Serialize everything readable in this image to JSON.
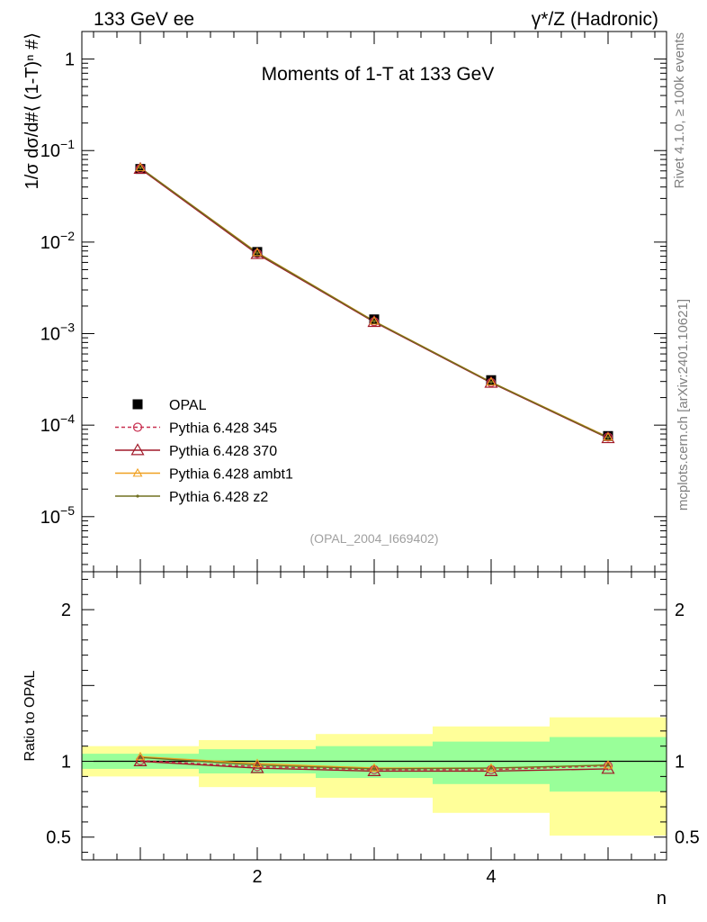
{
  "header": {
    "left": "133 GeV ee",
    "right": "γ*/Z (Hadronic)"
  },
  "side": {
    "rivet": "Rivet 4.1.0, ≥ 100k events",
    "mcplots": "mcplots.cern.ch [arXiv:2401.10621]"
  },
  "chart_data": [
    {
      "type": "scatter",
      "panel": "main",
      "title": "Moments of 1-T at 133 GeV",
      "ylabel": "1/σ dσ/d#⟨ (1-T)ⁿ #⟩",
      "watermark": "(OPAL_2004_I669402)",
      "yscale": "log",
      "ylim": [
        2.5e-06,
        2
      ],
      "xlim": [
        0.5,
        5.5
      ],
      "y_ticks": [
        {
          "value": 1,
          "base": "1",
          "exp": ""
        },
        {
          "value": 0.1,
          "base": "10",
          "exp": "−1"
        },
        {
          "value": 0.01,
          "base": "10",
          "exp": "−2"
        },
        {
          "value": 0.001,
          "base": "10",
          "exp": "−3"
        },
        {
          "value": 0.0001,
          "base": "10",
          "exp": "−4"
        },
        {
          "value": 1e-05,
          "base": "10",
          "exp": "−5"
        }
      ],
      "x": [
        1,
        2,
        3,
        4,
        5
      ],
      "series": [
        {
          "name": "OPAL",
          "color": "#000000",
          "marker": "square",
          "values": [
            0.063,
            0.0078,
            0.00143,
            0.00031,
            7.6e-05
          ]
        },
        {
          "name": "Pythia 6.428 345",
          "color": "#c83050",
          "marker": "circle",
          "dashed": true,
          "values": [
            0.0635,
            0.0075,
            0.00135,
            0.000292,
            7.4e-05
          ]
        },
        {
          "name": "Pythia 6.428 370",
          "color": "#a01828",
          "marker": "triangle",
          "values": [
            0.0632,
            0.0074,
            0.00134,
            0.00029,
            7.2e-05
          ]
        },
        {
          "name": "Pythia 6.428 ambt1",
          "color": "#f0a020",
          "marker": "triangle-small",
          "values": [
            0.065,
            0.0077,
            0.00137,
            0.000296,
            7.4e-05
          ]
        },
        {
          "name": "Pythia 6.428 z2",
          "color": "#707020",
          "marker": "dot",
          "values": [
            0.0648,
            0.0076,
            0.00136,
            0.000294,
            7.3e-05
          ]
        }
      ]
    },
    {
      "type": "line",
      "panel": "ratio",
      "ylabel": "Ratio to OPAL",
      "xlabel": "n",
      "ylim": [
        0.35,
        2.25
      ],
      "xlim": [
        0.5,
        5.5
      ],
      "x_ticks": [
        2,
        4
      ],
      "y_ticks": [
        0.5,
        1,
        2
      ],
      "bands": [
        {
          "xmin": 0.5,
          "xmax": 1.5,
          "stat": [
            0.95,
            1.05
          ],
          "total": [
            0.9,
            1.1
          ]
        },
        {
          "xmin": 1.5,
          "xmax": 2.5,
          "stat": [
            0.92,
            1.08
          ],
          "total": [
            0.83,
            1.14
          ]
        },
        {
          "xmin": 2.5,
          "xmax": 3.5,
          "stat": [
            0.89,
            1.1
          ],
          "total": [
            0.76,
            1.18
          ]
        },
        {
          "xmin": 3.5,
          "xmax": 4.5,
          "stat": [
            0.85,
            1.13
          ],
          "total": [
            0.66,
            1.23
          ]
        },
        {
          "xmin": 4.5,
          "xmax": 5.5,
          "stat": [
            0.8,
            1.16
          ],
          "total": [
            0.51,
            1.29
          ]
        }
      ],
      "series": [
        {
          "name": "Pythia 6.428 345",
          "color": "#c83050",
          "marker": "circle",
          "dashed": true,
          "values": [
            1.005,
            0.965,
            0.945,
            0.945,
            0.97
          ]
        },
        {
          "name": "Pythia 6.428 370",
          "color": "#a01828",
          "marker": "triangle",
          "values": [
            1.0,
            0.955,
            0.935,
            0.935,
            0.95
          ]
        },
        {
          "name": "Pythia 6.428 ambt1",
          "color": "#f0a020",
          "marker": "triangle-small",
          "values": [
            1.03,
            0.985,
            0.955,
            0.955,
            0.975
          ]
        },
        {
          "name": "Pythia 6.428 z2",
          "color": "#707020",
          "marker": "dot",
          "values": [
            1.025,
            0.975,
            0.95,
            0.955,
            0.975
          ]
        }
      ]
    }
  ]
}
